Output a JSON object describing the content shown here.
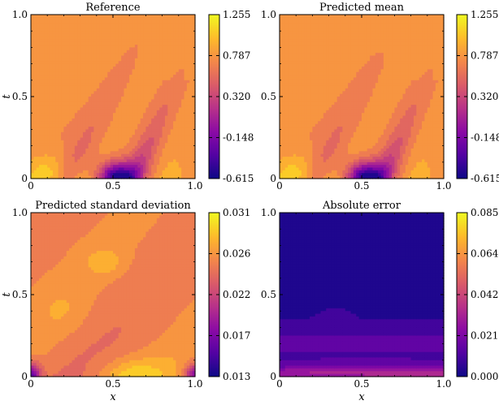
{
  "figure": {
    "panels": [
      {
        "id": "reference",
        "title": "Reference",
        "colorbar_ticks": [
          "1.255",
          "0.787",
          "0.320",
          "-0.148",
          "-0.615"
        ],
        "show_xlabel": false,
        "show_ylabel": true
      },
      {
        "id": "predicted-mean",
        "title": "Predicted mean",
        "colorbar_ticks": [
          "1.255",
          "0.787",
          "0.320",
          "-0.148",
          "-0.615"
        ],
        "show_xlabel": false,
        "show_ylabel": false
      },
      {
        "id": "predicted-std",
        "title": "Predicted standard deviation",
        "colorbar_ticks": [
          "0.031",
          "0.026",
          "0.022",
          "0.017",
          "0.013"
        ],
        "show_xlabel": true,
        "show_ylabel": true
      },
      {
        "id": "absolute-error",
        "title": "Absolute error",
        "colorbar_ticks": [
          "0.085",
          "0.064",
          "0.042",
          "0.021",
          "0.000"
        ],
        "show_xlabel": true,
        "show_ylabel": false
      }
    ],
    "x_ticks": [
      "0",
      "0.5",
      "1.0"
    ],
    "y_ticks": [
      "0",
      "0.5",
      "1.0"
    ],
    "xlabel": "x",
    "ylabel": "t",
    "colormap": [
      "#0d0887",
      "#5302a3",
      "#8b0aa5",
      "#b83289",
      "#db5c68",
      "#f48849",
      "#febc2a",
      "#f0f921"
    ]
  },
  "chart_data": [
    {
      "type": "heatmap",
      "title": "Reference",
      "xlabel": "",
      "ylabel": "t",
      "xlim": [
        0,
        1
      ],
      "ylim": [
        0,
        1
      ],
      "colorbar": {
        "min": -0.615,
        "max": 1.255,
        "ticks": [
          1.255,
          0.787,
          0.32,
          -0.148,
          -0.615
        ]
      },
      "x": [
        0,
        0.5,
        1
      ],
      "t": [
        0,
        0.5,
        1
      ]
    },
    {
      "type": "heatmap",
      "title": "Predicted mean",
      "xlabel": "",
      "ylabel": "",
      "xlim": [
        0,
        1
      ],
      "ylim": [
        0,
        1
      ],
      "colorbar": {
        "min": -0.615,
        "max": 1.255,
        "ticks": [
          1.255,
          0.787,
          0.32,
          -0.148,
          -0.615
        ]
      },
      "x": [
        0,
        0.5,
        1
      ],
      "t": [
        0,
        0.5,
        1
      ]
    },
    {
      "type": "heatmap",
      "title": "Predicted standard deviation",
      "xlabel": "x",
      "ylabel": "t",
      "xlim": [
        0,
        1
      ],
      "ylim": [
        0,
        1
      ],
      "colorbar": {
        "min": 0.013,
        "max": 0.031,
        "ticks": [
          0.031,
          0.026,
          0.022,
          0.017,
          0.013
        ]
      },
      "x": [
        0,
        0.5,
        1
      ],
      "t": [
        0,
        0.5,
        1
      ]
    },
    {
      "type": "heatmap",
      "title": "Absolute error",
      "xlabel": "x",
      "ylabel": "",
      "xlim": [
        0,
        1
      ],
      "ylim": [
        0,
        1
      ],
      "colorbar": {
        "min": 0.0,
        "max": 0.085,
        "ticks": [
          0.085,
          0.064,
          0.042,
          0.021,
          0.0
        ]
      },
      "x": [
        0,
        0.5,
        1
      ],
      "t": [
        0,
        0.5,
        1
      ]
    }
  ]
}
